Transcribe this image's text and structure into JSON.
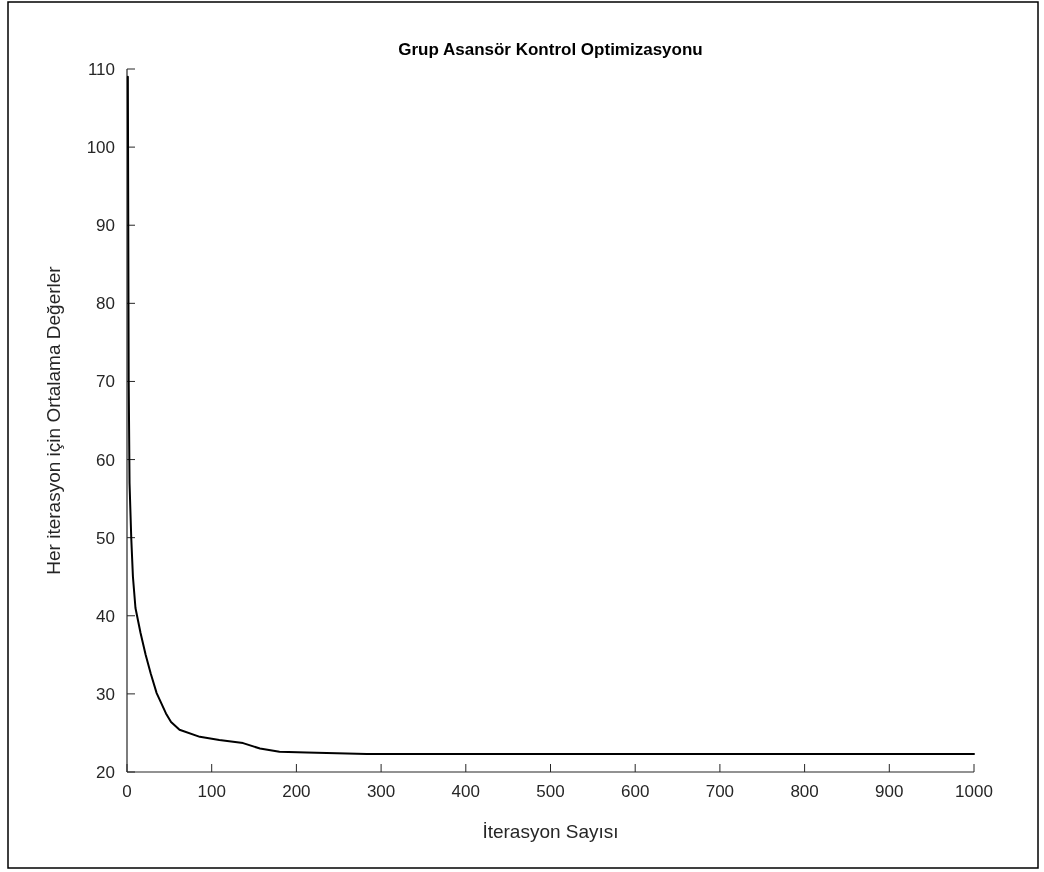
{
  "chart_data": {
    "type": "line",
    "title": "Grup Asansör Kontrol Optimizasyonu",
    "xlabel": "İterasyon Sayısı",
    "ylabel": "Her iterasyon için Ortalama Değerler",
    "series": [
      {
        "color": "#000000",
        "x": [
          1,
          2,
          3,
          5,
          7,
          10,
          16,
          22,
          28,
          35,
          46,
          52,
          62,
          86,
          109,
          137,
          157,
          180,
          212,
          283,
          400,
          600,
          800,
          1000
        ],
        "values": [
          109,
          70,
          57,
          50,
          45,
          41,
          37.8,
          35,
          32.6,
          30.1,
          27.5,
          26.4,
          25.4,
          24.5,
          24.1,
          23.7,
          23.0,
          22.6,
          22.5,
          22.3,
          22.3,
          22.3,
          22.3,
          22.3
        ]
      }
    ],
    "xlim": [
      0,
      1000
    ],
    "ylim": [
      20,
      110
    ],
    "xticks": [
      0,
      100,
      200,
      300,
      400,
      500,
      600,
      700,
      800,
      900,
      1000
    ],
    "yticks": [
      20,
      30,
      40,
      50,
      60,
      70,
      80,
      90,
      100,
      110
    ]
  }
}
